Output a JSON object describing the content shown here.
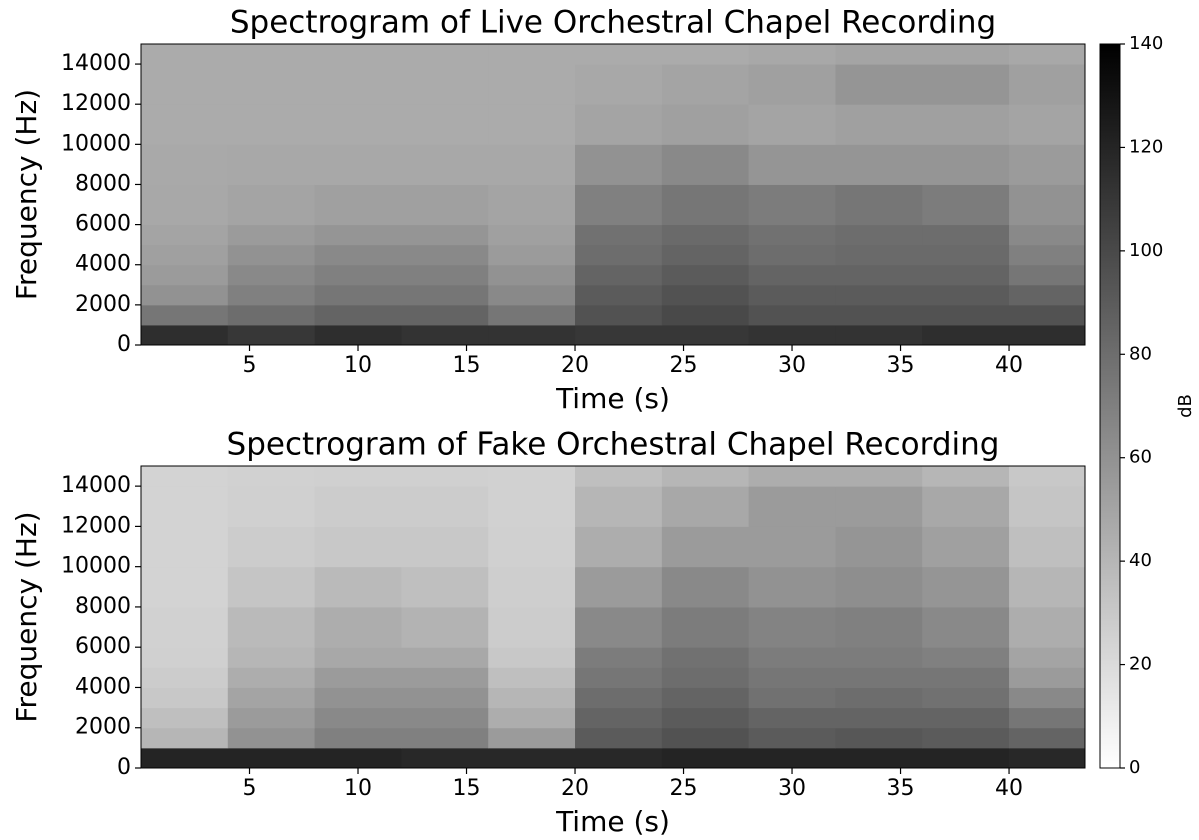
{
  "chart_data": [
    {
      "type": "heatmap",
      "title": "Spectrogram of Live Orchestral Chapel Recording",
      "xlabel": "Time (s)",
      "ylabel": "Frequency (Hz)",
      "x_edges": [
        0,
        4,
        8,
        12,
        16,
        20,
        24,
        28,
        32,
        36,
        40,
        43.5
      ],
      "y_edges": [
        0,
        1000,
        2000,
        3000,
        4000,
        5000,
        6000,
        8000,
        10000,
        12000,
        14000,
        15000
      ],
      "z": [
        [
          115,
          110,
          115,
          112,
          112,
          110,
          110,
          112,
          112,
          115,
          115
        ],
        [
          75,
          80,
          85,
          85,
          75,
          95,
          100,
          95,
          95,
          95,
          95
        ],
        [
          60,
          70,
          75,
          75,
          65,
          90,
          95,
          90,
          90,
          90,
          85
        ],
        [
          55,
          65,
          70,
          70,
          60,
          85,
          90,
          85,
          85,
          85,
          75
        ],
        [
          52,
          60,
          65,
          65,
          55,
          80,
          85,
          80,
          82,
          82,
          70
        ],
        [
          50,
          55,
          58,
          58,
          52,
          78,
          82,
          78,
          80,
          80,
          65
        ],
        [
          48,
          50,
          52,
          52,
          50,
          70,
          75,
          72,
          75,
          72,
          60
        ],
        [
          47,
          48,
          48,
          48,
          48,
          60,
          65,
          58,
          58,
          58,
          55
        ],
        [
          46,
          46,
          46,
          46,
          46,
          50,
          52,
          50,
          52,
          52,
          50
        ],
        [
          46,
          46,
          46,
          46,
          46,
          48,
          50,
          52,
          58,
          58,
          52
        ],
        [
          46,
          46,
          46,
          46,
          46,
          46,
          46,
          48,
          50,
          50,
          48
        ]
      ],
      "xlim": [
        0,
        43.5
      ],
      "ylim": [
        0,
        15000
      ],
      "xticks": [
        5,
        10,
        15,
        20,
        25,
        30,
        35,
        40
      ],
      "yticks": [
        0,
        2000,
        4000,
        6000,
        8000,
        10000,
        12000,
        14000
      ]
    },
    {
      "type": "heatmap",
      "title": "Spectrogram of Fake Orchestral Chapel Recording",
      "xlabel": "Time (s)",
      "ylabel": "Frequency (Hz)",
      "x_edges": [
        0,
        4,
        8,
        12,
        16,
        20,
        24,
        28,
        32,
        36,
        40,
        43.5
      ],
      "y_edges": [
        0,
        1000,
        2000,
        3000,
        4000,
        5000,
        6000,
        8000,
        10000,
        12000,
        14000,
        15000
      ],
      "z": [
        [
          120,
          120,
          120,
          118,
          118,
          118,
          120,
          120,
          120,
          120,
          118
        ],
        [
          40,
          60,
          70,
          70,
          55,
          90,
          95,
          90,
          92,
          90,
          85
        ],
        [
          35,
          55,
          65,
          65,
          45,
          85,
          90,
          85,
          85,
          85,
          75
        ],
        [
          30,
          50,
          60,
          60,
          40,
          80,
          85,
          78,
          80,
          78,
          65
        ],
        [
          28,
          45,
          55,
          55,
          35,
          75,
          80,
          75,
          75,
          75,
          55
        ],
        [
          26,
          40,
          48,
          48,
          30,
          72,
          78,
          72,
          72,
          70,
          50
        ],
        [
          25,
          38,
          45,
          42,
          28,
          65,
          72,
          68,
          70,
          65,
          45
        ],
        [
          24,
          32,
          38,
          35,
          27,
          55,
          65,
          60,
          62,
          58,
          40
        ],
        [
          24,
          28,
          30,
          30,
          26,
          45,
          55,
          55,
          58,
          52,
          35
        ],
        [
          24,
          26,
          28,
          28,
          25,
          40,
          48,
          55,
          55,
          48,
          32
        ],
        [
          24,
          25,
          26,
          26,
          25,
          35,
          40,
          45,
          45,
          40,
          30
        ]
      ],
      "xlim": [
        0,
        43.5
      ],
      "ylim": [
        0,
        15000
      ],
      "xticks": [
        5,
        10,
        15,
        20,
        25,
        30,
        35,
        40
      ],
      "yticks": [
        0,
        2000,
        4000,
        6000,
        8000,
        10000,
        12000,
        14000
      ]
    }
  ],
  "colorbar": {
    "label": "dB",
    "zlim": [
      0,
      140
    ],
    "ticks": [
      0,
      20,
      40,
      60,
      80,
      100,
      120,
      140
    ],
    "colormap": [
      "#ffffff",
      "#000000"
    ]
  }
}
